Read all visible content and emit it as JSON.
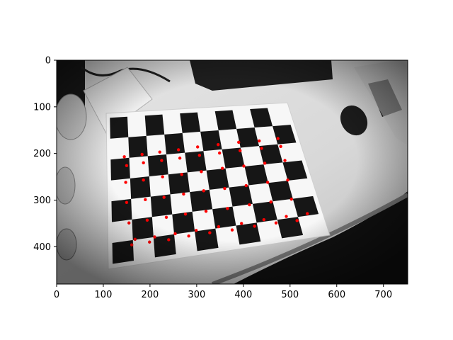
{
  "image": {
    "description_kind": "grayscale-photo-checkerboard-corner-detection",
    "board_rows": 7,
    "board_cols": 10,
    "corner_color": "#ff0000",
    "board_black": "#161616",
    "board_white": "#f7f7f7"
  },
  "axes": {
    "xlim": [
      0,
      752
    ],
    "ylim": [
      480,
      0
    ],
    "x_ticks": [
      0,
      100,
      200,
      300,
      400,
      500,
      600,
      700
    ],
    "y_ticks": [
      0,
      100,
      200,
      300,
      400
    ]
  },
  "detected_corners": [
    [
      145,
      207
    ],
    [
      183,
      202
    ],
    [
      221,
      197
    ],
    [
      261,
      192
    ],
    [
      302,
      186
    ],
    [
      346,
      181
    ],
    [
      390,
      176
    ],
    [
      434,
      173
    ],
    [
      474,
      168
    ],
    [
      150,
      226
    ],
    [
      186,
      220
    ],
    [
      225,
      215
    ],
    [
      264,
      210
    ],
    [
      306,
      204
    ],
    [
      349,
      199
    ],
    [
      393,
      194
    ],
    [
      439,
      189
    ],
    [
      480,
      185
    ],
    [
      148,
      262
    ],
    [
      186,
      257
    ],
    [
      227,
      250
    ],
    [
      268,
      245
    ],
    [
      310,
      239
    ],
    [
      355,
      232
    ],
    [
      401,
      227
    ],
    [
      446,
      221
    ],
    [
      489,
      215
    ],
    [
      150,
      305
    ],
    [
      190,
      299
    ],
    [
      230,
      294
    ],
    [
      272,
      287
    ],
    [
      315,
      280
    ],
    [
      360,
      275
    ],
    [
      406,
      269
    ],
    [
      452,
      262
    ],
    [
      495,
      257
    ],
    [
      155,
      349
    ],
    [
      194,
      343
    ],
    [
      235,
      337
    ],
    [
      276,
      330
    ],
    [
      320,
      324
    ],
    [
      366,
      318
    ],
    [
      413,
      310
    ],
    [
      459,
      304
    ],
    [
      503,
      298
    ],
    [
      161,
      396
    ],
    [
      199,
      390
    ],
    [
      240,
      385
    ],
    [
      283,
      377
    ],
    [
      328,
      370
    ],
    [
      376,
      364
    ],
    [
      424,
      356
    ],
    [
      470,
      349
    ],
    [
      515,
      344
    ],
    [
      168,
      384
    ],
    [
      210,
      379
    ],
    [
      254,
      372
    ],
    [
      299,
      365
    ],
    [
      347,
      357
    ],
    [
      396,
      350
    ],
    [
      444,
      342
    ],
    [
      492,
      335
    ],
    [
      537,
      329
    ]
  ]
}
